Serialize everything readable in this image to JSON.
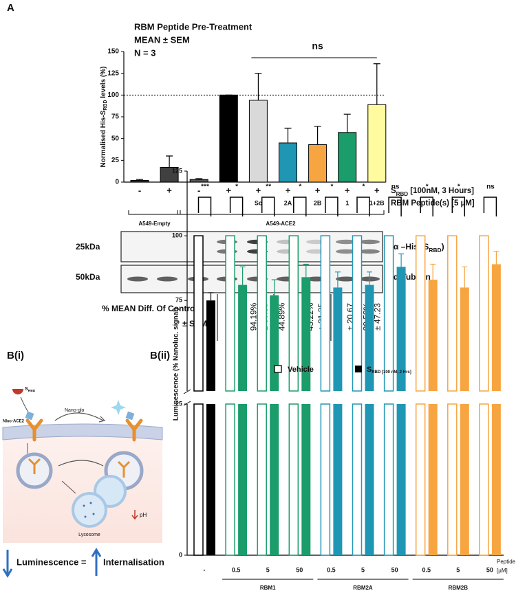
{
  "panel_labels": [
    "A",
    "B(i)",
    "B(ii)"
  ],
  "chart_data": [
    {
      "type": "bar",
      "title": [
        "RBM Peptide Pre-Treatment",
        "MEAN ± SEM",
        "N = 3"
      ],
      "y_label": [
        "Normalised His-S",
        "RBD",
        " levels (%)"
      ],
      "categories": [
        "-",
        "+",
        "-",
        "+",
        "+",
        "+",
        "+",
        "+",
        "+"
      ],
      "peptides": [
        null,
        null,
        null,
        null,
        "Sc",
        "2A",
        "2B",
        "1",
        "1+2B"
      ],
      "row_labels": [
        [
          "S",
          "RBD",
          " [100nM, 3 Hours]"
        ],
        [
          "RBM Peptide(s) [5 µM]"
        ]
      ],
      "values": [
        2,
        17,
        3,
        100,
        94,
        45,
        43,
        57,
        89
      ],
      "errors": [
        1,
        13,
        1,
        0,
        31,
        17,
        21,
        21,
        47
      ],
      "colors": [
        "#333333",
        "#404040",
        "#555555",
        "#000000",
        "#d9d9d9",
        "#1f97b4",
        "#f7a541",
        "#1a9c6b",
        "#fffb9e"
      ],
      "ylim": [
        0,
        150
      ],
      "yticks": [
        0,
        25,
        50,
        75,
        100,
        125,
        150
      ],
      "reference_line": 100,
      "annotations": [
        {
          "text": "ns",
          "color": "#c00000"
        }
      ],
      "groups": [
        "A549-Empty",
        "A549-ACE2"
      ]
    },
    {
      "type": "bar",
      "y_label": "Luminescence (% Nanoluc. signal)",
      "categories": [
        "-",
        "0.5",
        "5",
        "50",
        "0.5",
        "5",
        "50",
        "0.5",
        "5",
        "50"
      ],
      "x_label": [
        "Peptide",
        "[µM]"
      ],
      "groups": [
        "RBM1",
        "RBM2A",
        "RBM2B"
      ],
      "series": [
        {
          "name": "Vehicle",
          "values": [
            100,
            100,
            100,
            100,
            100,
            100,
            100,
            100,
            100,
            100
          ],
          "colors": [
            "#000000",
            "#1a9c6b",
            "#1a9c6b",
            "#1a9c6b",
            "#1f97b4",
            "#1f97b4",
            "#1f97b4",
            "#f7a541",
            "#f7a541",
            "#f7a541"
          ]
        },
        {
          "name": "S",
          "name_sub": "RBD [100 nM, 2 Hrs]",
          "values": [
            75,
            81,
            77,
            84,
            80,
            81,
            88,
            83,
            80,
            89
          ],
          "errors": [
            3,
            7,
            6,
            5,
            6,
            5,
            5,
            6,
            8,
            5
          ],
          "colors": [
            "#000000",
            "#1a9c6b",
            "#1a9c6b",
            "#1a9c6b",
            "#1f97b4",
            "#1f97b4",
            "#1f97b4",
            "#f7a541",
            "#f7a541",
            "#f7a541"
          ]
        }
      ],
      "significance": [
        "***",
        "*",
        "**",
        "*",
        "*",
        "*",
        "ns",
        "*",
        "*",
        "ns"
      ],
      "significance_colors": [
        "#000000",
        "#000000",
        "#000000",
        "#000000",
        "#000000",
        "#000000",
        "#c00000",
        "#000000",
        "#000000",
        "#c00000"
      ],
      "broken_axis": true,
      "axis_segments": [
        {
          "ylim": [
            0,
            25
          ],
          "yticks": [
            0,
            25
          ]
        },
        {
          "ylim": [
            40,
            125
          ],
          "yticks": [
            75,
            100,
            125
          ]
        }
      ]
    }
  ],
  "blot": {
    "rows": [
      {
        "size": "25kDa",
        "antibody": [
          "α –His (S",
          "RBD",
          ")"
        ]
      },
      {
        "size": "50kDa",
        "antibody": [
          "α-Tubulin"
        ]
      }
    ]
  },
  "table": {
    "row_labels": [
      "% MEAN Diff. Of Control",
      "± SEM:"
    ],
    "columns": [
      [
        "100%"
      ],
      [
        "94.19%",
        "± 30.35"
      ],
      [
        "44.89%",
        "± 17.37"
      ],
      [
        "43.22%",
        "± 21.35"
      ],
      [
        "56.98%",
        "± 20.67"
      ],
      [
        "89.53%",
        "± 47.23"
      ]
    ],
    "colors": [
      "#c00000",
      "#111111",
      "#111111",
      "#111111",
      "#111111",
      "#111111"
    ]
  },
  "diagram": {
    "srbd": [
      "S",
      "RBD"
    ],
    "nanoglo": "Nano-glo",
    "nluc": "Nluc-ACE2",
    "ph": "pH",
    "lysosome": "Lysosome",
    "equation": [
      "Luminescence =",
      "Internalisation"
    ]
  }
}
